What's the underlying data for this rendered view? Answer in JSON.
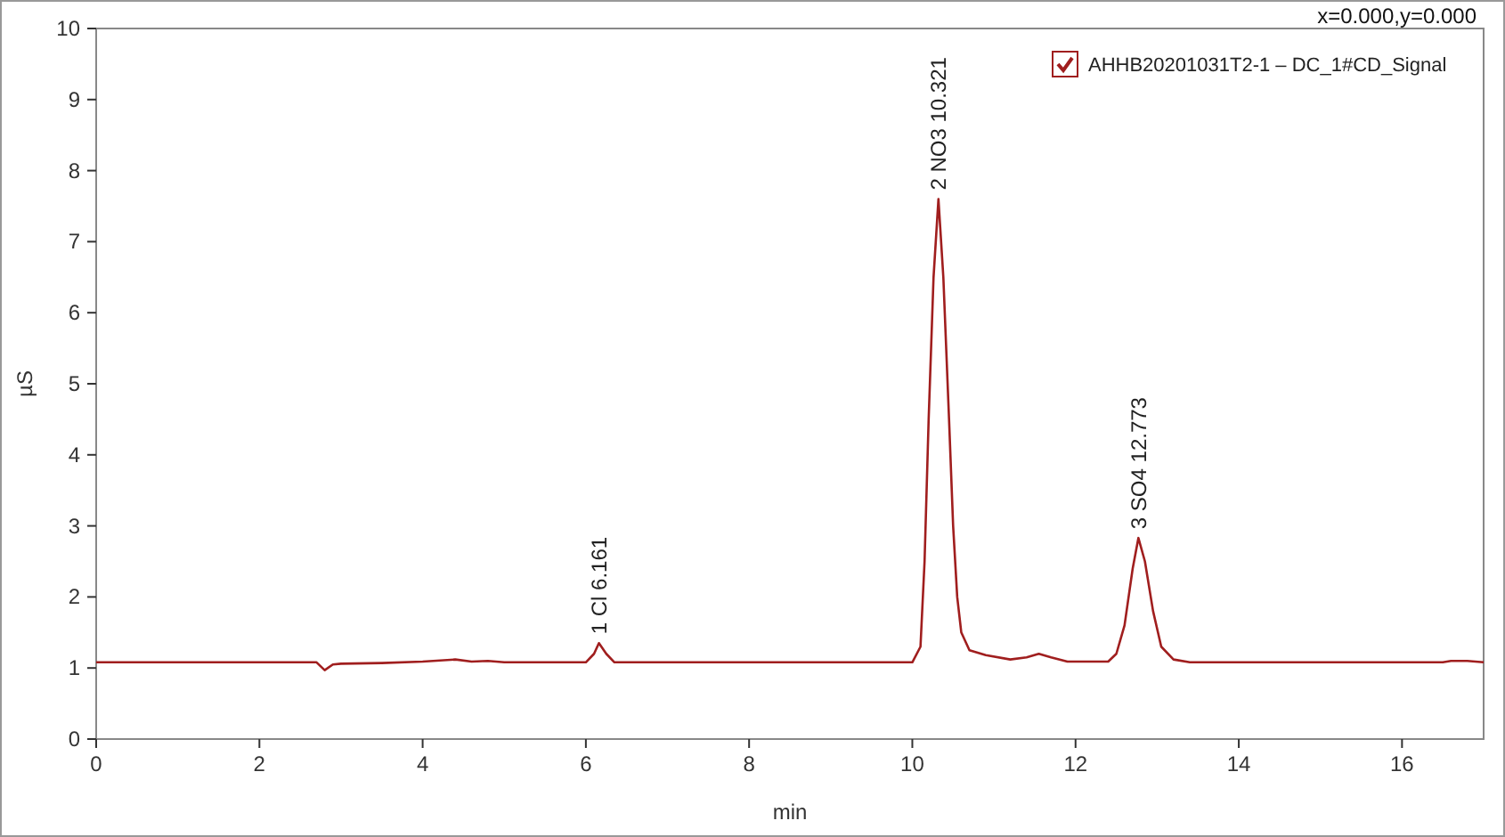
{
  "chart_data": {
    "type": "line",
    "xlabel": "min",
    "ylabel": "µS",
    "xlim": [
      0,
      17
    ],
    "xticks": [
      0,
      2,
      4,
      6,
      8,
      10,
      12,
      14,
      16
    ],
    "ylim": [
      0,
      10
    ],
    "yticks": [
      0,
      1,
      2,
      3,
      4,
      5,
      6,
      7,
      8,
      9,
      10
    ],
    "grid": false,
    "legend": "top right",
    "marker": "none",
    "line_style": "solid",
    "series": [
      {
        "name": "AHHB20201031T2-1 – DC_1#CD_Signal",
        "color": "#a01e1e",
        "x": [
          0,
          2.7,
          2.8,
          2.9,
          3.0,
          3.5,
          4.0,
          4.4,
          4.6,
          4.8,
          5.0,
          6.0,
          6.1,
          6.16,
          6.25,
          6.35,
          10.0,
          10.1,
          10.15,
          10.2,
          10.26,
          10.32,
          10.38,
          10.45,
          10.5,
          10.55,
          10.6,
          10.7,
          10.9,
          11.2,
          11.4,
          11.55,
          11.7,
          11.9,
          12.4,
          12.5,
          12.6,
          12.7,
          12.77,
          12.85,
          12.95,
          13.05,
          13.2,
          13.4,
          16.5,
          16.6,
          16.8,
          17
        ],
        "values": [
          1.08,
          1.08,
          0.97,
          1.05,
          1.06,
          1.07,
          1.09,
          1.12,
          1.09,
          1.1,
          1.08,
          1.08,
          1.2,
          1.35,
          1.2,
          1.08,
          1.08,
          1.3,
          2.5,
          4.5,
          6.5,
          7.6,
          6.5,
          4.5,
          3.0,
          2.0,
          1.5,
          1.25,
          1.18,
          1.12,
          1.15,
          1.2,
          1.15,
          1.09,
          1.09,
          1.2,
          1.6,
          2.4,
          2.83,
          2.5,
          1.8,
          1.3,
          1.12,
          1.08,
          1.08,
          1.1,
          1.1,
          1.08
        ]
      }
    ],
    "annotations": [
      {
        "text": "1 Cl 6.161",
        "x": 6.161,
        "y": 1.35
      },
      {
        "text": "2 NO3 10.321",
        "x": 10.321,
        "y": 7.6
      },
      {
        "text": "3 SO4 12.773",
        "x": 12.773,
        "y": 2.83
      },
      "x=0.000,y=0.000"
    ]
  }
}
